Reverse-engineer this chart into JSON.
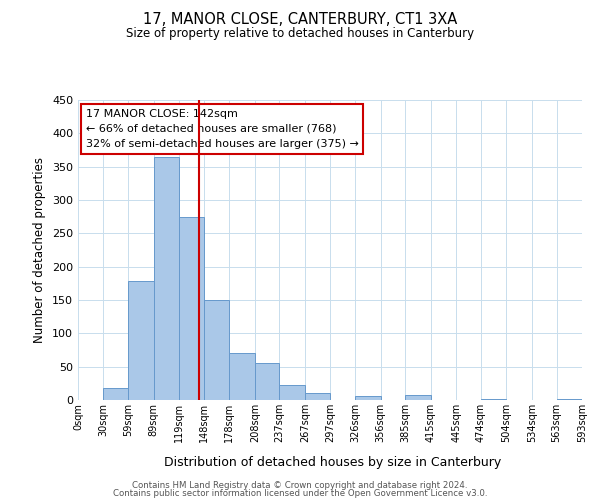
{
  "title": "17, MANOR CLOSE, CANTERBURY, CT1 3XA",
  "subtitle": "Size of property relative to detached houses in Canterbury",
  "xlabel": "Distribution of detached houses by size in Canterbury",
  "ylabel": "Number of detached properties",
  "footnote1": "Contains HM Land Registry data © Crown copyright and database right 2024.",
  "footnote2": "Contains public sector information licensed under the Open Government Licence v3.0.",
  "annotation_line1": "17 MANOR CLOSE: 142sqm",
  "annotation_line2": "← 66% of detached houses are smaller (768)",
  "annotation_line3": "32% of semi-detached houses are larger (375) →",
  "bar_color": "#aac8e8",
  "bar_edge_color": "#6699cc",
  "vline_color": "#cc0000",
  "annotation_box_edge": "#cc0000",
  "grid_color": "#c8dded",
  "background_color": "#ffffff",
  "bin_edges": [
    0,
    30,
    59,
    89,
    119,
    148,
    178,
    208,
    237,
    267,
    297,
    326,
    356,
    385,
    415,
    445,
    474,
    504,
    534,
    563,
    593
  ],
  "bin_labels": [
    "0sqm",
    "30sqm",
    "59sqm",
    "89sqm",
    "119sqm",
    "148sqm",
    "178sqm",
    "208sqm",
    "237sqm",
    "267sqm",
    "297sqm",
    "326sqm",
    "356sqm",
    "385sqm",
    "415sqm",
    "445sqm",
    "474sqm",
    "504sqm",
    "534sqm",
    "563sqm",
    "593sqm"
  ],
  "bar_heights": [
    0,
    18,
    178,
    365,
    275,
    150,
    70,
    55,
    23,
    10,
    0,
    6,
    0,
    7,
    0,
    0,
    2,
    0,
    0,
    2
  ],
  "vline_x": 142,
  "ylim": [
    0,
    450
  ],
  "yticks": [
    0,
    50,
    100,
    150,
    200,
    250,
    300,
    350,
    400,
    450
  ]
}
